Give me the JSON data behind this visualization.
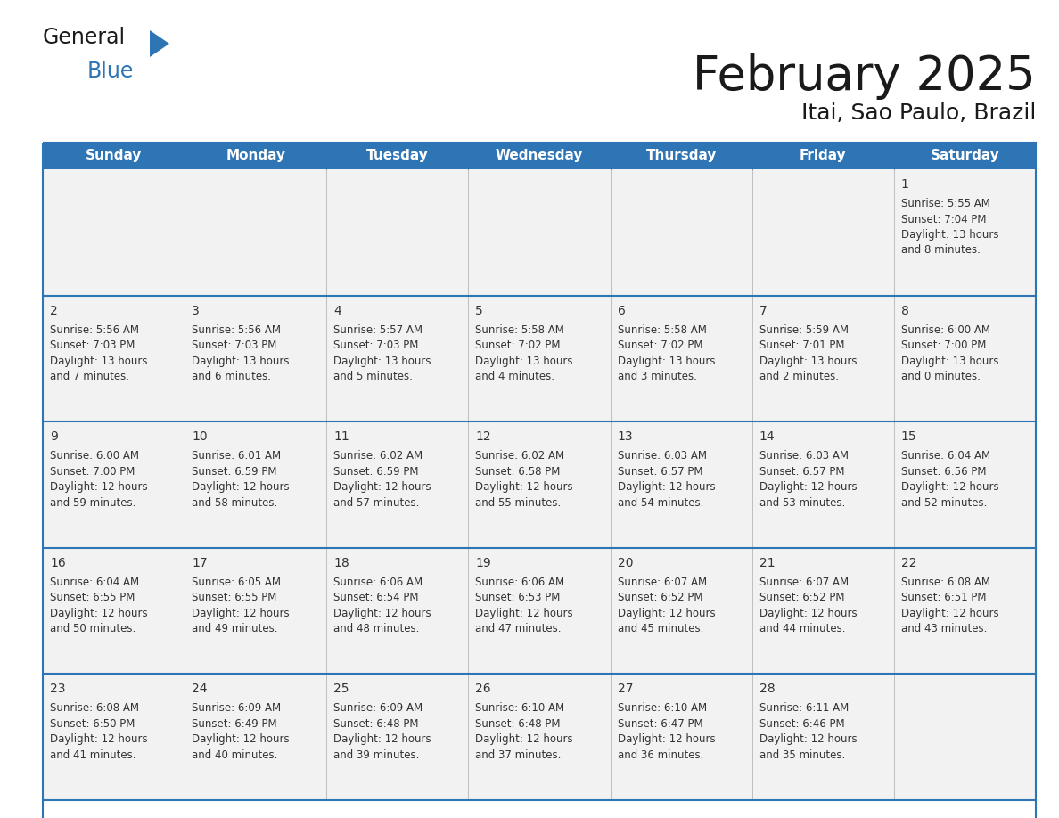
{
  "title": "February 2025",
  "subtitle": "Itai, Sao Paulo, Brazil",
  "header_bg": "#2E75B6",
  "header_text_color": "#FFFFFF",
  "cell_border_color": "#2E75B6",
  "row_separator_color": "#2E75B6",
  "day_number_color": "#333333",
  "cell_text_color": "#333333",
  "cell_bg_color": "#F2F2F2",
  "background_color": "#FFFFFF",
  "days_of_week": [
    "Sunday",
    "Monday",
    "Tuesday",
    "Wednesday",
    "Thursday",
    "Friday",
    "Saturday"
  ],
  "calendar_data": [
    [
      null,
      null,
      null,
      null,
      null,
      null,
      {
        "day": 1,
        "sunrise": "5:55 AM",
        "sunset": "7:04 PM",
        "daylight_hours": 13,
        "daylight_minutes": 8
      }
    ],
    [
      {
        "day": 2,
        "sunrise": "5:56 AM",
        "sunset": "7:03 PM",
        "daylight_hours": 13,
        "daylight_minutes": 7
      },
      {
        "day": 3,
        "sunrise": "5:56 AM",
        "sunset": "7:03 PM",
        "daylight_hours": 13,
        "daylight_minutes": 6
      },
      {
        "day": 4,
        "sunrise": "5:57 AM",
        "sunset": "7:03 PM",
        "daylight_hours": 13,
        "daylight_minutes": 5
      },
      {
        "day": 5,
        "sunrise": "5:58 AM",
        "sunset": "7:02 PM",
        "daylight_hours": 13,
        "daylight_minutes": 4
      },
      {
        "day": 6,
        "sunrise": "5:58 AM",
        "sunset": "7:02 PM",
        "daylight_hours": 13,
        "daylight_minutes": 3
      },
      {
        "day": 7,
        "sunrise": "5:59 AM",
        "sunset": "7:01 PM",
        "daylight_hours": 13,
        "daylight_minutes": 2
      },
      {
        "day": 8,
        "sunrise": "6:00 AM",
        "sunset": "7:00 PM",
        "daylight_hours": 13,
        "daylight_minutes": 0
      }
    ],
    [
      {
        "day": 9,
        "sunrise": "6:00 AM",
        "sunset": "7:00 PM",
        "daylight_hours": 12,
        "daylight_minutes": 59
      },
      {
        "day": 10,
        "sunrise": "6:01 AM",
        "sunset": "6:59 PM",
        "daylight_hours": 12,
        "daylight_minutes": 58
      },
      {
        "day": 11,
        "sunrise": "6:02 AM",
        "sunset": "6:59 PM",
        "daylight_hours": 12,
        "daylight_minutes": 57
      },
      {
        "day": 12,
        "sunrise": "6:02 AM",
        "sunset": "6:58 PM",
        "daylight_hours": 12,
        "daylight_minutes": 55
      },
      {
        "day": 13,
        "sunrise": "6:03 AM",
        "sunset": "6:57 PM",
        "daylight_hours": 12,
        "daylight_minutes": 54
      },
      {
        "day": 14,
        "sunrise": "6:03 AM",
        "sunset": "6:57 PM",
        "daylight_hours": 12,
        "daylight_minutes": 53
      },
      {
        "day": 15,
        "sunrise": "6:04 AM",
        "sunset": "6:56 PM",
        "daylight_hours": 12,
        "daylight_minutes": 52
      }
    ],
    [
      {
        "day": 16,
        "sunrise": "6:04 AM",
        "sunset": "6:55 PM",
        "daylight_hours": 12,
        "daylight_minutes": 50
      },
      {
        "day": 17,
        "sunrise": "6:05 AM",
        "sunset": "6:55 PM",
        "daylight_hours": 12,
        "daylight_minutes": 49
      },
      {
        "day": 18,
        "sunrise": "6:06 AM",
        "sunset": "6:54 PM",
        "daylight_hours": 12,
        "daylight_minutes": 48
      },
      {
        "day": 19,
        "sunrise": "6:06 AM",
        "sunset": "6:53 PM",
        "daylight_hours": 12,
        "daylight_minutes": 47
      },
      {
        "day": 20,
        "sunrise": "6:07 AM",
        "sunset": "6:52 PM",
        "daylight_hours": 12,
        "daylight_minutes": 45
      },
      {
        "day": 21,
        "sunrise": "6:07 AM",
        "sunset": "6:52 PM",
        "daylight_hours": 12,
        "daylight_minutes": 44
      },
      {
        "day": 22,
        "sunrise": "6:08 AM",
        "sunset": "6:51 PM",
        "daylight_hours": 12,
        "daylight_minutes": 43
      }
    ],
    [
      {
        "day": 23,
        "sunrise": "6:08 AM",
        "sunset": "6:50 PM",
        "daylight_hours": 12,
        "daylight_minutes": 41
      },
      {
        "day": 24,
        "sunrise": "6:09 AM",
        "sunset": "6:49 PM",
        "daylight_hours": 12,
        "daylight_minutes": 40
      },
      {
        "day": 25,
        "sunrise": "6:09 AM",
        "sunset": "6:48 PM",
        "daylight_hours": 12,
        "daylight_minutes": 39
      },
      {
        "day": 26,
        "sunrise": "6:10 AM",
        "sunset": "6:48 PM",
        "daylight_hours": 12,
        "daylight_minutes": 37
      },
      {
        "day": 27,
        "sunrise": "6:10 AM",
        "sunset": "6:47 PM",
        "daylight_hours": 12,
        "daylight_minutes": 36
      },
      {
        "day": 28,
        "sunrise": "6:11 AM",
        "sunset": "6:46 PM",
        "daylight_hours": 12,
        "daylight_minutes": 35
      },
      null
    ]
  ],
  "logo_text1": "General",
  "logo_text2": "Blue",
  "logo_text1_color": "#1a1a1a",
  "logo_text2_color": "#2E75B6",
  "logo_triangle_color": "#2E75B6",
  "title_fontsize": 38,
  "subtitle_fontsize": 18,
  "header_fontsize": 11,
  "day_num_fontsize": 10,
  "cell_text_fontsize": 8.5
}
